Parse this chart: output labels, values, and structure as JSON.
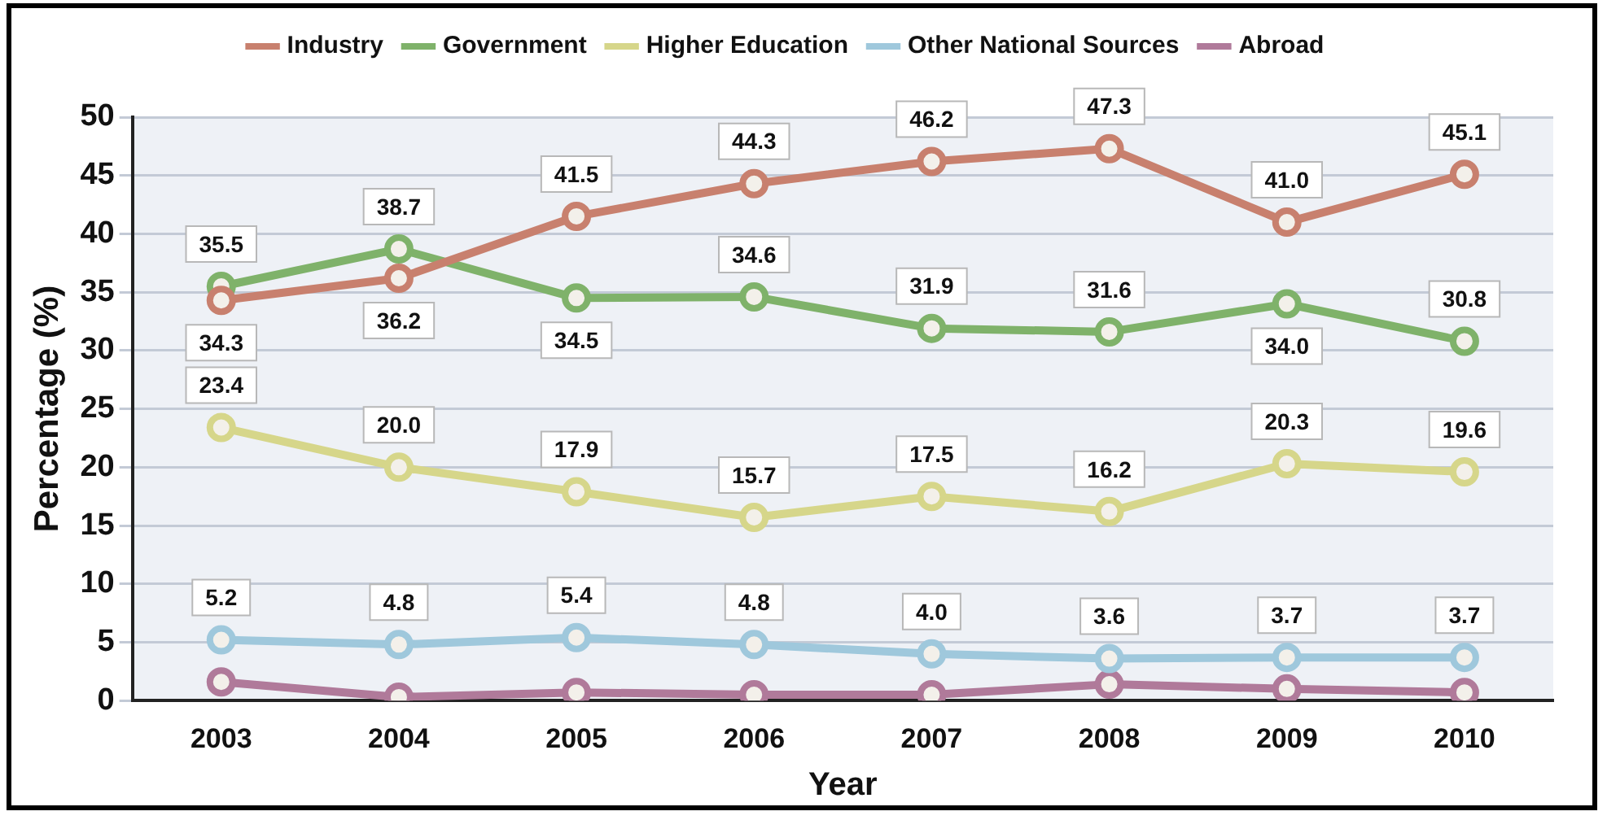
{
  "chart_data": {
    "type": "line",
    "xlabel": "Year",
    "ylabel": "Percentage (%)",
    "categories": [
      "2003",
      "2004",
      "2005",
      "2006",
      "2007",
      "2008",
      "2009",
      "2010"
    ],
    "series": [
      {
        "name": "Industry",
        "color": "#c8806e",
        "values": [
          34.3,
          36.2,
          41.5,
          44.3,
          46.2,
          47.3,
          41.0,
          45.1
        ],
        "value_labels": [
          "34.3",
          "36.2",
          "41.5",
          "44.3",
          "46.2",
          "47.3",
          "41.0",
          "45.1"
        ]
      },
      {
        "name": "Government",
        "color": "#7fb26a",
        "values": [
          35.5,
          38.7,
          34.5,
          34.6,
          31.9,
          31.6,
          34.0,
          30.8
        ],
        "value_labels": [
          "35.5",
          "38.7",
          "34.5",
          "34.6",
          "31.9",
          "31.6",
          "34.0",
          "30.8"
        ]
      },
      {
        "name": "Higher Education",
        "color": "#d6d68a",
        "values": [
          23.4,
          20.0,
          17.9,
          15.7,
          17.5,
          16.2,
          20.3,
          19.6
        ],
        "value_labels": [
          "23.4",
          "20.0",
          "17.9",
          "15.7",
          "17.5",
          "16.2",
          "20.3",
          "19.6"
        ]
      },
      {
        "name": "Other National Sources",
        "color": "#9fc8dc",
        "values": [
          5.2,
          4.8,
          5.4,
          4.8,
          4.0,
          3.6,
          3.7,
          3.7
        ],
        "value_labels": [
          "5.2",
          "4.8",
          "5.4",
          "4.8",
          "4.0",
          "3.6",
          "3.7",
          "3.7"
        ]
      },
      {
        "name": "Abroad",
        "color": "#b07a9a",
        "values": [
          1.6,
          0.3,
          0.7,
          0.5,
          0.5,
          1.4,
          1.0,
          0.7
        ]
      }
    ],
    "ylim": [
      0,
      50
    ],
    "yticks": [
      0,
      5,
      10,
      15,
      20,
      25,
      30,
      35,
      40,
      45,
      50
    ],
    "grid": "y",
    "legend": "top",
    "marker": "circle",
    "line_style": "solid"
  }
}
